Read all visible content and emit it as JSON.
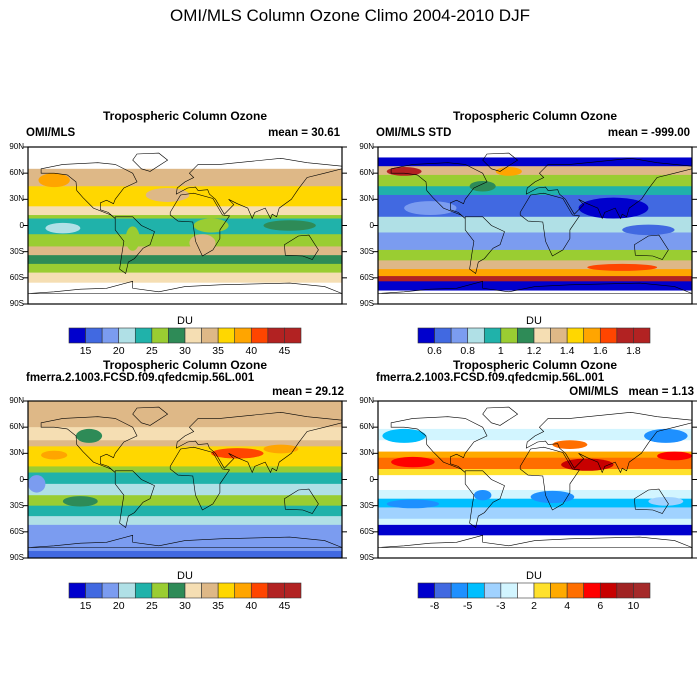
{
  "title": "OMI/MLS Column Ozone Climo 2004-2010 DJF",
  "panels": [
    {
      "title": "Tropospheric Column Ozone",
      "left": "OMI/MLS",
      "right": "mean =  30.61",
      "scale": "abs",
      "field": {
        "bands": [
          [
            90,
            65,
            -1
          ],
          [
            65,
            45,
            8
          ],
          [
            45,
            22,
            9
          ],
          [
            22,
            12,
            7
          ],
          [
            12,
            8,
            5
          ],
          [
            8,
            -10,
            4
          ],
          [
            -10,
            -24,
            5
          ],
          [
            -24,
            -34,
            8
          ],
          [
            -34,
            -44,
            6
          ],
          [
            -44,
            -54,
            5
          ],
          [
            -54,
            -65,
            7
          ],
          [
            -65,
            -90,
            -1
          ]
        ],
        "blobs": [
          [
            -150,
            52,
            18,
            8,
            10
          ],
          [
            -20,
            35,
            25,
            8,
            8
          ],
          [
            80,
            35,
            40,
            7,
            9
          ],
          [
            -140,
            -3,
            20,
            6,
            3
          ],
          [
            20,
            -20,
            15,
            10,
            8
          ],
          [
            30,
            0,
            20,
            8,
            5
          ],
          [
            120,
            0,
            30,
            6,
            6
          ],
          [
            -60,
            -15,
            8,
            14,
            5
          ]
        ]
      }
    },
    {
      "title": "Tropospheric Column Ozone",
      "left": "OMI/MLS STD",
      "right": "mean = -999.00",
      "scale": "abs_std",
      "field": {
        "bands": [
          [
            90,
            78,
            -1
          ],
          [
            78,
            68,
            0
          ],
          [
            68,
            58,
            8
          ],
          [
            58,
            45,
            5
          ],
          [
            45,
            35,
            4
          ],
          [
            35,
            10,
            1
          ],
          [
            10,
            -8,
            3
          ],
          [
            -8,
            -28,
            2
          ],
          [
            -28,
            -40,
            5
          ],
          [
            -40,
            -50,
            8
          ],
          [
            -50,
            -58,
            10
          ],
          [
            -58,
            -64,
            12
          ],
          [
            -64,
            -74,
            0
          ],
          [
            -74,
            -90,
            -1
          ]
        ],
        "blobs": [
          [
            -150,
            62,
            20,
            5,
            12
          ],
          [
            -30,
            62,
            15,
            5,
            10
          ],
          [
            90,
            20,
            40,
            12,
            0
          ],
          [
            -120,
            20,
            30,
            8,
            2
          ],
          [
            -60,
            45,
            15,
            6,
            6
          ],
          [
            130,
            -5,
            30,
            6,
            1
          ],
          [
            100,
            -48,
            40,
            4,
            11
          ]
        ]
      }
    },
    {
      "title": "Tropospheric Column Ozone",
      "left": "fmerra.2.1003.FCSD.f09.qfedcmip.56L.001",
      "right": "mean =  29.12",
      "scale": "abs",
      "field": {
        "bands": [
          [
            90,
            60,
            8
          ],
          [
            60,
            45,
            7
          ],
          [
            45,
            38,
            8
          ],
          [
            38,
            15,
            9
          ],
          [
            15,
            8,
            5
          ],
          [
            8,
            -5,
            4
          ],
          [
            -5,
            -18,
            3
          ],
          [
            -18,
            -30,
            5
          ],
          [
            -30,
            -42,
            4
          ],
          [
            -42,
            -52,
            3
          ],
          [
            -52,
            -82,
            2
          ],
          [
            -82,
            -90,
            1
          ]
        ],
        "blobs": [
          [
            -150,
            28,
            15,
            5,
            10
          ],
          [
            60,
            30,
            30,
            6,
            11
          ],
          [
            110,
            35,
            20,
            5,
            10
          ],
          [
            -110,
            50,
            15,
            8,
            6
          ],
          [
            20,
            50,
            20,
            5,
            7
          ],
          [
            -120,
            -25,
            20,
            6,
            6
          ],
          [
            -170,
            -5,
            10,
            10,
            2
          ]
        ]
      }
    },
    {
      "title": "Tropospheric Column Ozone",
      "left": "fmerra.2.1003.FCSD.f09.qfedcmip.56L.001",
      "right": "mean =  1.13",
      "overlay": "OMI/MLS",
      "scale": "diff",
      "field": {
        "bands": [
          [
            90,
            58,
            6
          ],
          [
            58,
            45,
            5
          ],
          [
            45,
            32,
            6
          ],
          [
            32,
            25,
            8
          ],
          [
            25,
            12,
            9
          ],
          [
            12,
            5,
            7
          ],
          [
            5,
            -12,
            6
          ],
          [
            -12,
            -22,
            5
          ],
          [
            -22,
            -32,
            3
          ],
          [
            -32,
            -45,
            4
          ],
          [
            -45,
            -52,
            5
          ],
          [
            -52,
            -64,
            0
          ],
          [
            -64,
            -90,
            6
          ]
        ],
        "blobs": [
          [
            -150,
            50,
            25,
            8,
            3
          ],
          [
            150,
            50,
            25,
            8,
            2
          ],
          [
            40,
            40,
            20,
            5,
            9
          ],
          [
            60,
            17,
            30,
            7,
            11
          ],
          [
            160,
            27,
            20,
            5,
            10
          ],
          [
            -140,
            20,
            25,
            6,
            10
          ],
          [
            -60,
            -18,
            10,
            6,
            2
          ],
          [
            20,
            -20,
            25,
            7,
            2
          ],
          [
            -140,
            -28,
            30,
            5,
            2
          ],
          [
            150,
            -25,
            20,
            5,
            4
          ]
        ]
      }
    }
  ],
  "lat_labels": [
    "90N",
    "60N",
    "30N",
    "0",
    "30S",
    "60S",
    "90S"
  ],
  "chart_data": {
    "type": "heatmap",
    "title": "OMI/MLS Column Ozone Climo 2004-2010 DJF",
    "units": "DU",
    "colorbars": {
      "abs": {
        "label": "DU",
        "ticks": [
          "15",
          "20",
          "25",
          "30",
          "35",
          "40",
          "45"
        ],
        "colors": [
          "#0000cd",
          "#4169e1",
          "#7b9cf0",
          "#b0e0e6",
          "#20b2aa",
          "#9acd32",
          "#2e8b57",
          "#f5deb3",
          "#deb887",
          "#ffd700",
          "#ffa500",
          "#ff4500",
          "#b22222",
          "#b22222"
        ]
      },
      "abs_std": {
        "label": "DU",
        "ticks": [
          "0.6",
          "0.8",
          "1",
          "1.2",
          "1.4",
          "1.6",
          "1.8"
        ],
        "colors": [
          "#0000cd",
          "#4169e1",
          "#7b9cf0",
          "#b0e0e6",
          "#20b2aa",
          "#9acd32",
          "#2e8b57",
          "#f5deb3",
          "#deb887",
          "#ffd700",
          "#ffa500",
          "#ff4500",
          "#b22222",
          "#b22222"
        ]
      },
      "diff": {
        "label": "DU",
        "ticks": [
          "-8",
          "-5",
          "-3",
          "2",
          "4",
          "6",
          "10"
        ],
        "colors": [
          "#0000cd",
          "#4169e1",
          "#1e90ff",
          "#00bfff",
          "#a0d2ff",
          "#d2f5ff",
          "#ffffff",
          "#ffe12c",
          "#ffaa00",
          "#ff6e00",
          "#ff0000",
          "#c80000",
          "#a02323",
          "#a52a2a"
        ]
      }
    },
    "lon_range": [
      -180,
      180
    ],
    "lat_range": [
      -90,
      90
    ]
  }
}
